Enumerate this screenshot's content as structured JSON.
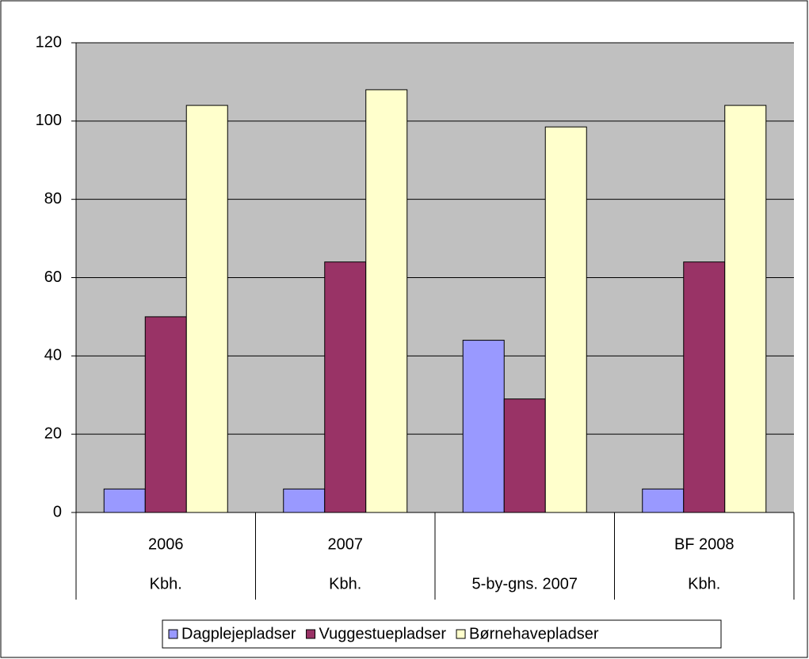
{
  "chart_data": {
    "type": "bar",
    "categories": [
      [
        "2006",
        "Kbh."
      ],
      [
        "2007",
        "Kbh."
      ],
      [
        null,
        "5-by-gns. 2007"
      ],
      [
        "BF 2008",
        "Kbh."
      ]
    ],
    "series": [
      {
        "name": "Dagplejepladser",
        "color": "#9999ff",
        "values": [
          6,
          6,
          44,
          6
        ]
      },
      {
        "name": "Vuggestuepladser",
        "color": "#993366",
        "values": [
          50,
          64,
          29,
          64
        ]
      },
      {
        "name": "Børnehavepladser",
        "color": "#ffffcc",
        "values": [
          104,
          108,
          98.5,
          104
        ]
      }
    ],
    "ylim": [
      0,
      120
    ],
    "yticks": [
      0,
      20,
      40,
      60,
      80,
      100,
      120
    ],
    "grid": true,
    "legend": "bottom"
  }
}
